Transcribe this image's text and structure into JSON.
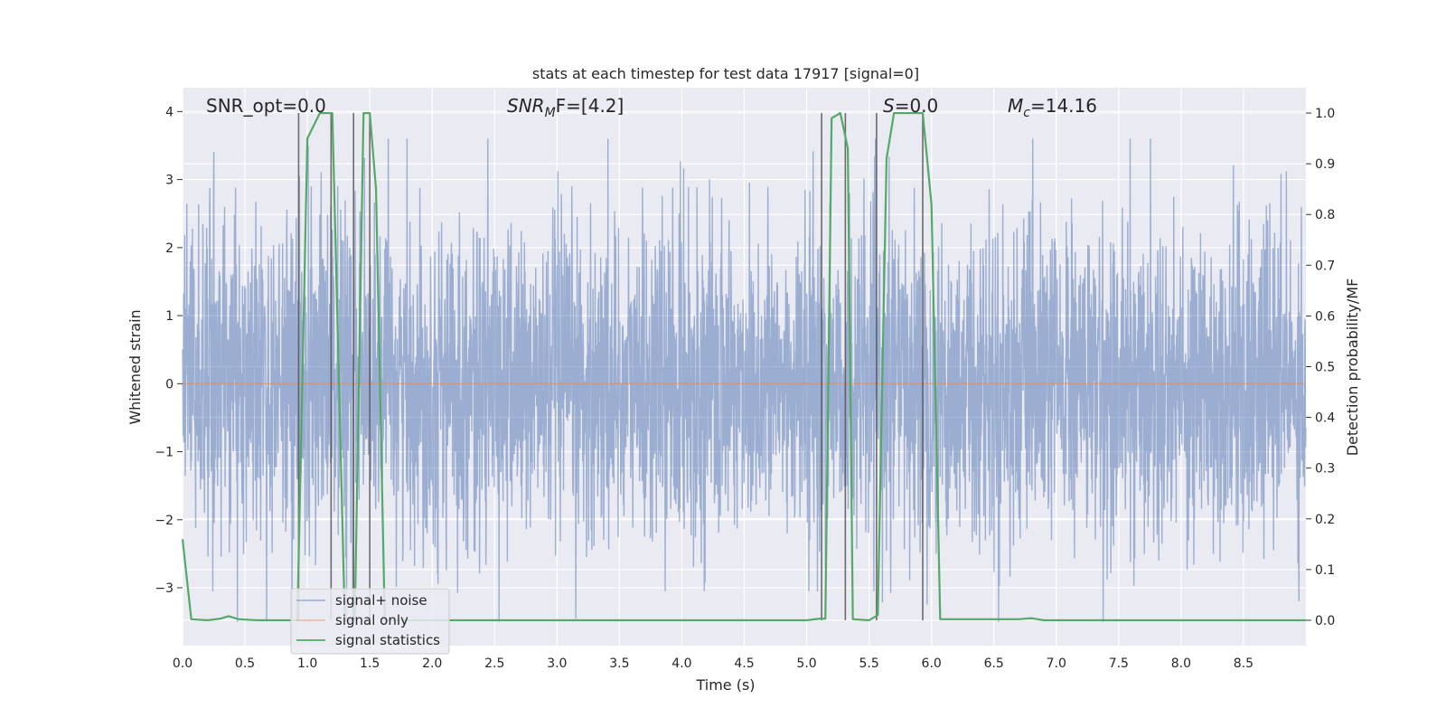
{
  "chart_data": {
    "type": "line",
    "title": "stats at each timestep for test data 17917 [signal=0]",
    "xlabel": "Time (s)",
    "ylabel": "Whitened strain",
    "y2label": "Detection probability/MF",
    "xlim": [
      0.0,
      9.0
    ],
    "ylim": [
      -3.85,
      4.35
    ],
    "y2lim": [
      -0.05,
      1.05
    ],
    "x_ticks": [
      "0.0",
      "0.5",
      "1.0",
      "1.5",
      "2.0",
      "2.5",
      "3.0",
      "3.5",
      "4.0",
      "4.5",
      "5.0",
      "5.5",
      "6.0",
      "6.5",
      "7.0",
      "7.5",
      "8.0",
      "8.5"
    ],
    "y_ticks": [
      "4",
      "3",
      "2",
      "1",
      "0",
      "−1",
      "−2",
      "−3"
    ],
    "y2_ticks": [
      "1.0",
      "0.9",
      "0.8",
      "0.7",
      "0.6",
      "0.5",
      "0.4",
      "0.3",
      "0.2",
      "0.1",
      "0.0"
    ],
    "grid": true,
    "legend_position": "lower-left",
    "annotations": {
      "snr_opt": "SNR_opt=0.0",
      "snr_mf_base": "SNR",
      "snr_mf_sub": "M",
      "snr_mf_rest": "F=[4.2]",
      "s_italic": "S",
      "s_rest": "=0.0",
      "mc_base": "M",
      "mc_sub": "c",
      "mc_rest": "=14.16"
    },
    "colors": {
      "noise": "#4c72b0",
      "signal_only": "#dd8452",
      "statistics": "#55a868",
      "markers": "#555555",
      "background": "#eaeaf2"
    },
    "series": [
      {
        "name": "signal+ noise",
        "description_values": "whitened noise samples, roughly symmetric around 0, peaks between -3.5 and 3.6",
        "amplitude_envelope": [
          -3.5,
          3.6
        ]
      },
      {
        "name": "signal only",
        "x": [
          0.0,
          9.0
        ],
        "y": [
          0.0,
          0.0
        ]
      },
      {
        "name": "signal statistics",
        "axis": "right",
        "x": [
          0.0,
          0.07,
          0.2,
          0.3,
          0.37,
          0.45,
          0.6,
          0.92,
          1.0,
          1.1,
          1.2,
          1.3,
          1.38,
          1.45,
          1.5,
          1.55,
          1.62,
          1.7,
          2.0,
          5.0,
          5.1,
          5.15,
          5.2,
          5.27,
          5.33,
          5.37,
          5.5,
          5.57,
          5.64,
          5.7,
          5.93,
          6.0,
          6.07,
          6.7,
          6.8,
          6.9,
          9.0
        ],
        "y": [
          0.16,
          0.002,
          0.0,
          0.003,
          0.008,
          0.002,
          0.0,
          0.0,
          0.95,
          1.0,
          1.0,
          0.0,
          0.0,
          1.0,
          1.0,
          0.85,
          0.0,
          0.0,
          0.0,
          0.0,
          0.003,
          0.003,
          0.99,
          1.0,
          0.93,
          0.002,
          0.0,
          0.01,
          0.91,
          1.0,
          1.0,
          0.82,
          0.002,
          0.002,
          0.004,
          0.0,
          0.0
        ]
      },
      {
        "name": "detection markers",
        "x": [
          0.93,
          1.19,
          1.37,
          1.5,
          5.12,
          5.31,
          5.56,
          5.93
        ]
      }
    ]
  }
}
